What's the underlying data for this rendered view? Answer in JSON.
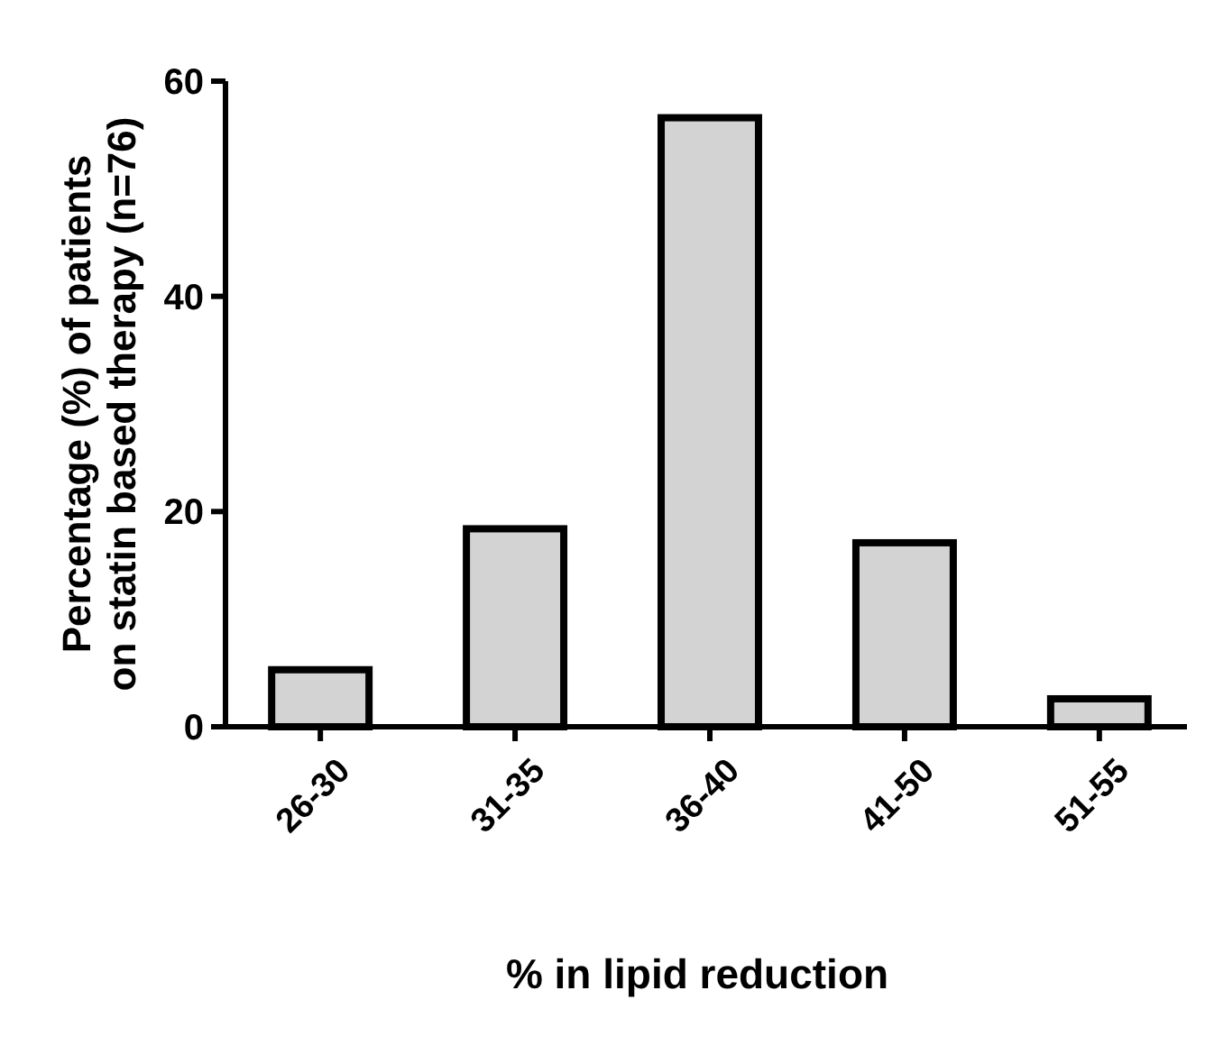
{
  "chart_data": {
    "type": "bar",
    "xlabel": "% in lipid reduction",
    "ylabel": "Percentage (%) of patients on statin based therapy (n=76)",
    "categories": [
      "26-30",
      "31-35",
      "36-40",
      "41-50",
      "51-55"
    ],
    "values": [
      5.3,
      18.4,
      56.6,
      17.1,
      2.6
    ],
    "color": "#d3d3d3",
    "ylim": [
      0,
      60
    ],
    "yticks": [
      0,
      20,
      40,
      60
    ],
    "grid": false
  }
}
